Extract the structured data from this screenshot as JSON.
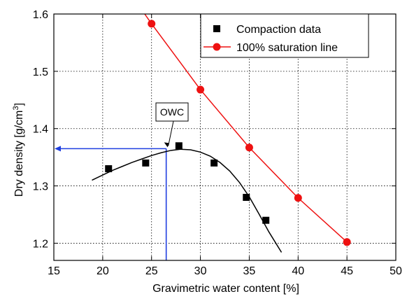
{
  "chart_data": {
    "type": "scatter",
    "xlabel": "Gravimetric water content [%]",
    "ylabel_main": "Dry density [g/cm",
    "ylabel_sup": "3",
    "ylabel_end": "]",
    "xlim": [
      15,
      50
    ],
    "ylim": [
      1.17,
      1.6
    ],
    "xticks": [
      15,
      20,
      25,
      30,
      35,
      40,
      45,
      50
    ],
    "yticks": [
      1.2,
      1.3,
      1.4,
      1.5,
      1.6
    ],
    "xtick_labels": [
      "15",
      "20",
      "25",
      "30",
      "35",
      "40",
      "45",
      "50"
    ],
    "ytick_labels": [
      "1.2",
      "1.3",
      "1.4",
      "1.5",
      "1.6"
    ],
    "grid": true,
    "legend_position": "top-right",
    "series": [
      {
        "name": "Compaction data",
        "marker": "square",
        "color": "#000000",
        "line": false,
        "x": [
          20.6,
          24.4,
          27.8,
          31.4,
          34.7,
          36.7
        ],
        "y": [
          1.33,
          1.34,
          1.37,
          1.34,
          1.28,
          1.24
        ]
      },
      {
        "name": "100% saturation line",
        "marker": "circle",
        "color": "#ee1111",
        "line": true,
        "x": [
          25,
          30,
          35,
          40,
          45
        ],
        "y": [
          1.583,
          1.468,
          1.367,
          1.279,
          1.202
        ]
      }
    ],
    "extra_segment": {
      "color": "#ee1111",
      "x": [
        24.3,
        25
      ],
      "y": [
        1.6,
        1.583
      ]
    },
    "fit_curve": {
      "color": "#000000",
      "x": [
        18.9,
        20,
        21,
        22,
        23,
        24,
        25,
        26,
        27,
        28,
        29,
        30,
        31,
        32,
        33,
        34,
        35,
        36,
        37,
        38.3
      ],
      "y": [
        1.31,
        1.319,
        1.327,
        1.334,
        1.341,
        1.347,
        1.353,
        1.358,
        1.362,
        1.364,
        1.363,
        1.359,
        1.352,
        1.341,
        1.326,
        1.306,
        1.281,
        1.251,
        1.22,
        1.184
      ]
    },
    "annotation": {
      "label": "OWC",
      "color": "#1f3fe0",
      "x": 26.5,
      "y": 1.365
    }
  }
}
